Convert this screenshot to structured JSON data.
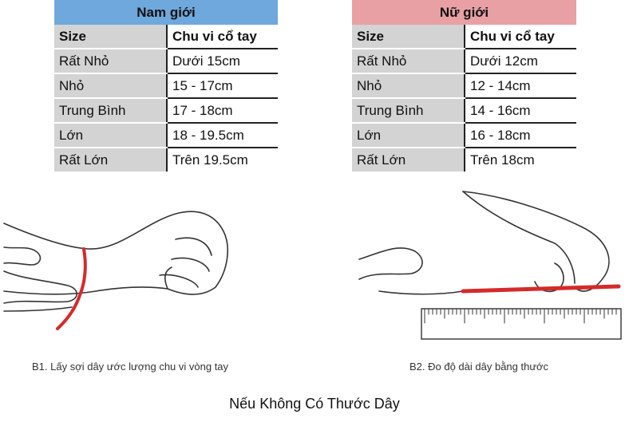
{
  "male_table": {
    "title": "Nam giới",
    "headers": [
      "Size",
      "Chu vi cổ tay"
    ],
    "rows": [
      [
        "Rất Nhỏ",
        "Dưới 15cm"
      ],
      [
        "Nhỏ",
        "15 - 17cm"
      ],
      [
        "Trung Bình",
        "17 - 18cm"
      ],
      [
        "Lớn",
        "18 - 19.5cm"
      ],
      [
        "Rất Lớn",
        "Trên 19.5cm"
      ]
    ],
    "header_color": "#6fa8dc"
  },
  "female_table": {
    "title": "Nữ giới",
    "headers": [
      "Size",
      "Chu vi cổ tay"
    ],
    "rows": [
      [
        "Rất Nhỏ",
        "Dưới 12cm"
      ],
      [
        "Nhỏ",
        "12 - 14cm"
      ],
      [
        "Trung Bình",
        "14 - 16cm"
      ],
      [
        "Lớn",
        "16 - 18cm"
      ],
      [
        "Rất Lớn",
        "Trên 18cm"
      ]
    ],
    "header_color": "#e8a0a4"
  },
  "steps": {
    "step1": "B1. Lấy sợi dây ước lượng chu vi vòng tay",
    "step2": "B2. Đo độ dài dây bằng thước"
  },
  "footer_title": "Nếu Không Có Thước Dây",
  "string_color": "#d42a2a"
}
